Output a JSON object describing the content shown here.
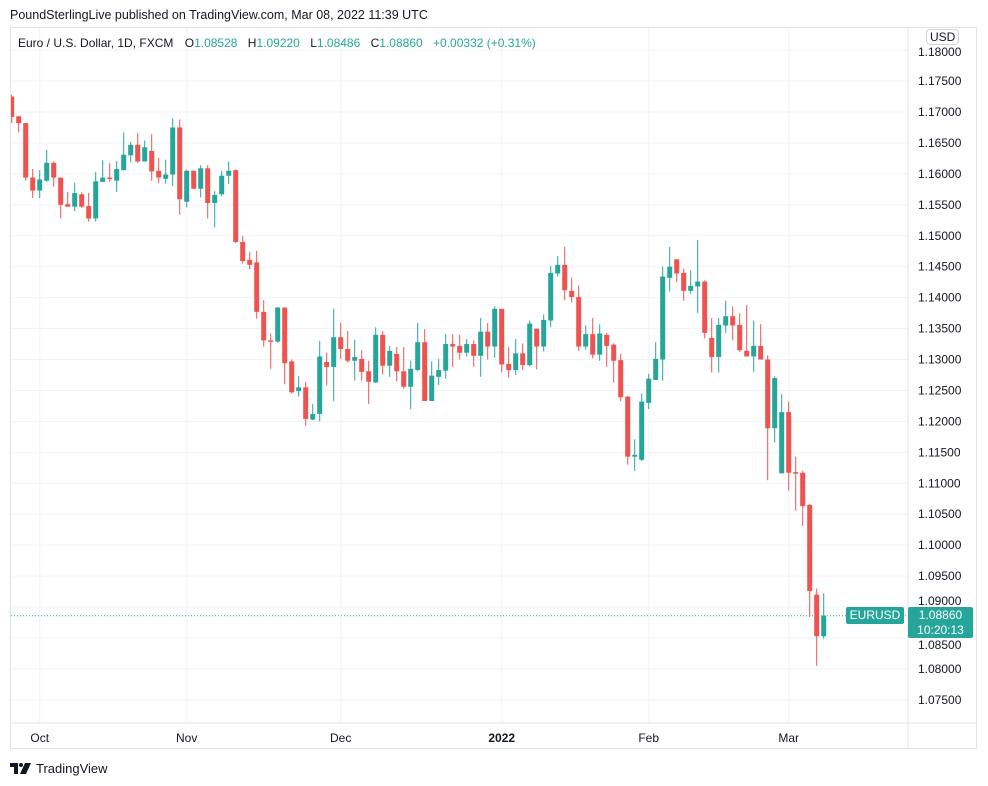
{
  "header": {
    "published": "PoundSterlingLive published on TradingView.com, Mar 08, 2022 11:39 UTC"
  },
  "legend": {
    "symbol": "Euro / U.S. Dollar, 1D, FXCM",
    "open_label": "O",
    "open": "1.08528",
    "high_label": "H",
    "high": "1.09220",
    "low_label": "L",
    "low": "1.08486",
    "close_label": "C",
    "close": "1.08860",
    "change": "+0.00332 (+0.31%)"
  },
  "currency_button": "USD",
  "last_price": {
    "symbol": "EURUSD",
    "price": "1.08860",
    "countdown": "10:20:13"
  },
  "footer": {
    "brand": "TradingView"
  },
  "colors": {
    "up": "#26a69a",
    "down": "#ef5350",
    "grid": "#f0f3fa",
    "border": "#e0e3eb"
  },
  "chart_data": {
    "type": "candlestick",
    "title": "",
    "ylim": [
      1.0725,
      1.1815
    ],
    "grid": true,
    "y_ticks": [
      "1.18000",
      "1.17500",
      "1.17000",
      "1.16500",
      "1.16000",
      "1.15500",
      "1.15000",
      "1.14500",
      "1.14000",
      "1.13500",
      "1.13000",
      "1.12500",
      "1.12000",
      "1.11500",
      "1.11000",
      "1.10500",
      "1.10000",
      "1.09500",
      "1.09000",
      "1.08500",
      "1.08000",
      "1.07500"
    ],
    "x_ticks": [
      {
        "label": "Oct",
        "date": "2021-10-01",
        "bold": false
      },
      {
        "label": "Nov",
        "date": "2021-11-01",
        "bold": false
      },
      {
        "label": "Dec",
        "date": "2021-12-01",
        "bold": false
      },
      {
        "label": "2022",
        "date": "2022-01-03",
        "bold": true
      },
      {
        "label": "Feb",
        "date": "2022-02-01",
        "bold": false
      },
      {
        "label": "Mar",
        "date": "2022-03-01",
        "bold": false
      }
    ],
    "columns": [
      "date",
      "open",
      "high",
      "low",
      "close"
    ],
    "candles": [
      [
        "2021-09-27",
        1.1725,
        1.1728,
        1.1682,
        1.1692
      ],
      [
        "2021-09-28",
        1.1693,
        1.1693,
        1.1667,
        1.1682
      ],
      [
        "2021-09-29",
        1.1682,
        1.1682,
        1.1589,
        1.1594
      ],
      [
        "2021-09-30",
        1.1594,
        1.1608,
        1.1561,
        1.1573
      ],
      [
        "2021-10-01",
        1.1573,
        1.1606,
        1.1561,
        1.1591
      ],
      [
        "2021-10-04",
        1.1589,
        1.1639,
        1.1587,
        1.1618
      ],
      [
        "2021-10-05",
        1.1618,
        1.162,
        1.1579,
        1.1594
      ],
      [
        "2021-10-06",
        1.1594,
        1.1594,
        1.1528,
        1.155
      ],
      [
        "2021-10-07",
        1.1551,
        1.1571,
        1.1547,
        1.1547
      ],
      [
        "2021-10-08",
        1.1547,
        1.1586,
        1.154,
        1.1569
      ],
      [
        "2021-10-11",
        1.1567,
        1.157,
        1.1545,
        1.1547
      ],
      [
        "2021-10-12",
        1.1548,
        1.1569,
        1.1523,
        1.1528
      ],
      [
        "2021-10-13",
        1.1528,
        1.1603,
        1.1523,
        1.1588
      ],
      [
        "2021-10-14",
        1.1587,
        1.1622,
        1.1587,
        1.1594
      ],
      [
        "2021-10-15",
        1.1594,
        1.1617,
        1.1587,
        1.1592
      ],
      [
        "2021-10-18",
        1.1589,
        1.1621,
        1.1571,
        1.1608
      ],
      [
        "2021-10-19",
        1.1606,
        1.1667,
        1.1606,
        1.1631
      ],
      [
        "2021-10-20",
        1.163,
        1.1652,
        1.1619,
        1.1647
      ],
      [
        "2021-10-21",
        1.1647,
        1.1666,
        1.1618,
        1.162
      ],
      [
        "2021-10-22",
        1.162,
        1.1654,
        1.162,
        1.1643
      ],
      [
        "2021-10-25",
        1.1637,
        1.1664,
        1.1589,
        1.1604
      ],
      [
        "2021-10-26",
        1.1605,
        1.1626,
        1.1585,
        1.1594
      ],
      [
        "2021-10-27",
        1.1592,
        1.1623,
        1.1584,
        1.1599
      ],
      [
        "2021-10-28",
        1.1599,
        1.169,
        1.158,
        1.1675
      ],
      [
        "2021-10-29",
        1.1675,
        1.1688,
        1.1534,
        1.1559
      ],
      [
        "2021-11-01",
        1.1555,
        1.1607,
        1.1546,
        1.1605
      ],
      [
        "2021-11-02",
        1.1605,
        1.1605,
        1.1575,
        1.1576
      ],
      [
        "2021-11-03",
        1.1576,
        1.1614,
        1.1562,
        1.1609
      ],
      [
        "2021-11-04",
        1.1609,
        1.1614,
        1.1528,
        1.1553
      ],
      [
        "2021-11-05",
        1.1553,
        1.1572,
        1.1514,
        1.1566
      ],
      [
        "2021-11-08",
        1.1567,
        1.1605,
        1.1564,
        1.1597
      ],
      [
        "2021-11-09",
        1.1597,
        1.162,
        1.1584,
        1.1605
      ],
      [
        "2021-11-10",
        1.1606,
        1.1607,
        1.1488,
        1.149
      ],
      [
        "2021-11-11",
        1.149,
        1.15,
        1.1455,
        1.1459
      ],
      [
        "2021-11-12",
        1.1461,
        1.1474,
        1.1446,
        1.1453
      ],
      [
        "2021-11-15",
        1.1457,
        1.1476,
        1.1366,
        1.1377
      ],
      [
        "2021-11-16",
        1.1377,
        1.1396,
        1.1321,
        1.1331
      ],
      [
        "2021-11-17",
        1.1331,
        1.1342,
        1.1285,
        1.1329
      ],
      [
        "2021-11-18",
        1.1329,
        1.1385,
        1.1327,
        1.1384
      ],
      [
        "2021-11-19",
        1.1384,
        1.1384,
        1.126,
        1.1294
      ],
      [
        "2021-11-22",
        1.1297,
        1.13,
        1.1245,
        1.1247
      ],
      [
        "2021-11-23",
        1.1249,
        1.1273,
        1.124,
        1.1255
      ],
      [
        "2021-11-24",
        1.1255,
        1.1264,
        1.1193,
        1.1204
      ],
      [
        "2021-11-25",
        1.1203,
        1.1228,
        1.1202,
        1.1212
      ],
      [
        "2021-11-26",
        1.1212,
        1.133,
        1.12,
        1.1305
      ],
      [
        "2021-11-29",
        1.1296,
        1.1311,
        1.1258,
        1.1288
      ],
      [
        "2021-11-30",
        1.1288,
        1.1382,
        1.1233,
        1.1336
      ],
      [
        "2021-12-01",
        1.1336,
        1.1359,
        1.1301,
        1.1317
      ],
      [
        "2021-12-02",
        1.1317,
        1.1346,
        1.1295,
        1.1298
      ],
      [
        "2021-12-03",
        1.1298,
        1.1332,
        1.1266,
        1.1304
      ],
      [
        "2021-12-06",
        1.1301,
        1.1315,
        1.1266,
        1.128
      ],
      [
        "2021-12-07",
        1.1281,
        1.1298,
        1.1228,
        1.1264
      ],
      [
        "2021-12-08",
        1.1263,
        1.1352,
        1.1262,
        1.134
      ],
      [
        "2021-12-09",
        1.134,
        1.1346,
        1.1276,
        1.129
      ],
      [
        "2021-12-10",
        1.129,
        1.1322,
        1.1272,
        1.1314
      ],
      [
        "2021-12-13",
        1.1309,
        1.132,
        1.1265,
        1.1281
      ],
      [
        "2021-12-14",
        1.1281,
        1.132,
        1.1253,
        1.1256
      ],
      [
        "2021-12-15",
        1.1256,
        1.1298,
        1.122,
        1.1285
      ],
      [
        "2021-12-16",
        1.1283,
        1.1359,
        1.1281,
        1.1328
      ],
      [
        "2021-12-17",
        1.1328,
        1.1349,
        1.1233,
        1.1233
      ],
      [
        "2021-12-20",
        1.1233,
        1.1297,
        1.1233,
        1.1274
      ],
      [
        "2021-12-21",
        1.1272,
        1.1301,
        1.1259,
        1.1283
      ],
      [
        "2021-12-22",
        1.1282,
        1.1341,
        1.1269,
        1.1325
      ],
      [
        "2021-12-23",
        1.1325,
        1.1341,
        1.1288,
        1.1321
      ],
      [
        "2021-12-24",
        1.1322,
        1.134,
        1.13,
        1.1311
      ],
      [
        "2021-12-27",
        1.1311,
        1.1333,
        1.1305,
        1.1325
      ],
      [
        "2021-12-28",
        1.1325,
        1.1331,
        1.1288,
        1.1306
      ],
      [
        "2021-12-29",
        1.1306,
        1.1367,
        1.1272,
        1.1345
      ],
      [
        "2021-12-30",
        1.1345,
        1.1359,
        1.13,
        1.1321
      ],
      [
        "2021-12-31",
        1.1321,
        1.1386,
        1.1303,
        1.1382
      ],
      [
        "2022-01-03",
        1.1382,
        1.1382,
        1.1279,
        1.1292
      ],
      [
        "2022-01-04",
        1.1293,
        1.132,
        1.1271,
        1.1283
      ],
      [
        "2022-01-05",
        1.1283,
        1.1333,
        1.1275,
        1.131
      ],
      [
        "2022-01-06",
        1.131,
        1.1326,
        1.1283,
        1.1291
      ],
      [
        "2022-01-07",
        1.1291,
        1.1363,
        1.1289,
        1.1358
      ],
      [
        "2022-01-10",
        1.135,
        1.135,
        1.1284,
        1.1321
      ],
      [
        "2022-01-11",
        1.1321,
        1.1373,
        1.1313,
        1.1364
      ],
      [
        "2022-01-12",
        1.1363,
        1.1451,
        1.1353,
        1.144
      ],
      [
        "2022-01-13",
        1.1439,
        1.1467,
        1.1434,
        1.1453
      ],
      [
        "2022-01-14",
        1.1453,
        1.1482,
        1.1396,
        1.1412
      ],
      [
        "2022-01-17",
        1.1411,
        1.1432,
        1.1392,
        1.1401
      ],
      [
        "2022-01-18",
        1.1401,
        1.142,
        1.1314,
        1.1321
      ],
      [
        "2022-01-19",
        1.1321,
        1.1355,
        1.1316,
        1.1341
      ],
      [
        "2022-01-20",
        1.1341,
        1.1367,
        1.1302,
        1.1308
      ],
      [
        "2022-01-21",
        1.1308,
        1.1357,
        1.1298,
        1.1342
      ],
      [
        "2022-01-24",
        1.134,
        1.1343,
        1.1288,
        1.1322
      ],
      [
        "2022-01-25",
        1.1324,
        1.1326,
        1.1263,
        1.1298
      ],
      [
        "2022-01-26",
        1.1299,
        1.1309,
        1.1233,
        1.1239
      ],
      [
        "2022-01-27",
        1.124,
        1.1241,
        1.113,
        1.1143
      ],
      [
        "2022-01-28",
        1.1143,
        1.1171,
        1.112,
        1.1146
      ],
      [
        "2022-01-31",
        1.1138,
        1.1245,
        1.1136,
        1.1232
      ],
      [
        "2022-02-01",
        1.123,
        1.1277,
        1.122,
        1.1269
      ],
      [
        "2022-02-02",
        1.1267,
        1.1328,
        1.1267,
        1.1301
      ],
      [
        "2022-02-03",
        1.13,
        1.145,
        1.1266,
        1.1434
      ],
      [
        "2022-02-04",
        1.1432,
        1.1482,
        1.141,
        1.145
      ],
      [
        "2022-02-07",
        1.1462,
        1.1462,
        1.1425,
        1.1439
      ],
      [
        "2022-02-08",
        1.144,
        1.1447,
        1.1395,
        1.1411
      ],
      [
        "2022-02-09",
        1.1411,
        1.1444,
        1.1406,
        1.1419
      ],
      [
        "2022-02-10",
        1.1418,
        1.1493,
        1.1375,
        1.1426
      ],
      [
        "2022-02-11",
        1.1426,
        1.1428,
        1.1334,
        1.1343
      ],
      [
        "2022-02-14",
        1.1335,
        1.1367,
        1.1279,
        1.1304
      ],
      [
        "2022-02-15",
        1.1304,
        1.1367,
        1.1279,
        1.1356
      ],
      [
        "2022-02-16",
        1.1355,
        1.1395,
        1.1343,
        1.137
      ],
      [
        "2022-02-17",
        1.137,
        1.1386,
        1.1331,
        1.1355
      ],
      [
        "2022-02-18",
        1.1356,
        1.1375,
        1.1312,
        1.1315
      ],
      [
        "2022-02-21",
        1.1314,
        1.1388,
        1.1305,
        1.1305
      ],
      [
        "2022-02-22",
        1.1305,
        1.1363,
        1.128,
        1.1322
      ],
      [
        "2022-02-23",
        1.1322,
        1.1357,
        1.13,
        1.13
      ],
      [
        "2022-02-24",
        1.13,
        1.1307,
        1.1105,
        1.1189
      ],
      [
        "2022-02-25",
        1.1189,
        1.1273,
        1.1166,
        1.127
      ],
      [
        "2022-02-28",
        1.1116,
        1.1244,
        1.1116,
        1.1215
      ],
      [
        "2022-03-01",
        1.1215,
        1.1232,
        1.1088,
        1.1117
      ],
      [
        "2022-03-02",
        1.1118,
        1.1143,
        1.1056,
        1.1116
      ],
      [
        "2022-03-03",
        1.1117,
        1.112,
        1.1031,
        1.1063
      ],
      [
        "2022-03-04",
        1.1065,
        1.1067,
        1.0884,
        1.0926
      ],
      [
        "2022-03-07",
        1.092,
        1.093,
        1.0805,
        1.0853
      ],
      [
        "2022-03-08",
        1.08528,
        1.0922,
        1.08486,
        1.0886
      ]
    ],
    "last_close": 1.0886
  }
}
